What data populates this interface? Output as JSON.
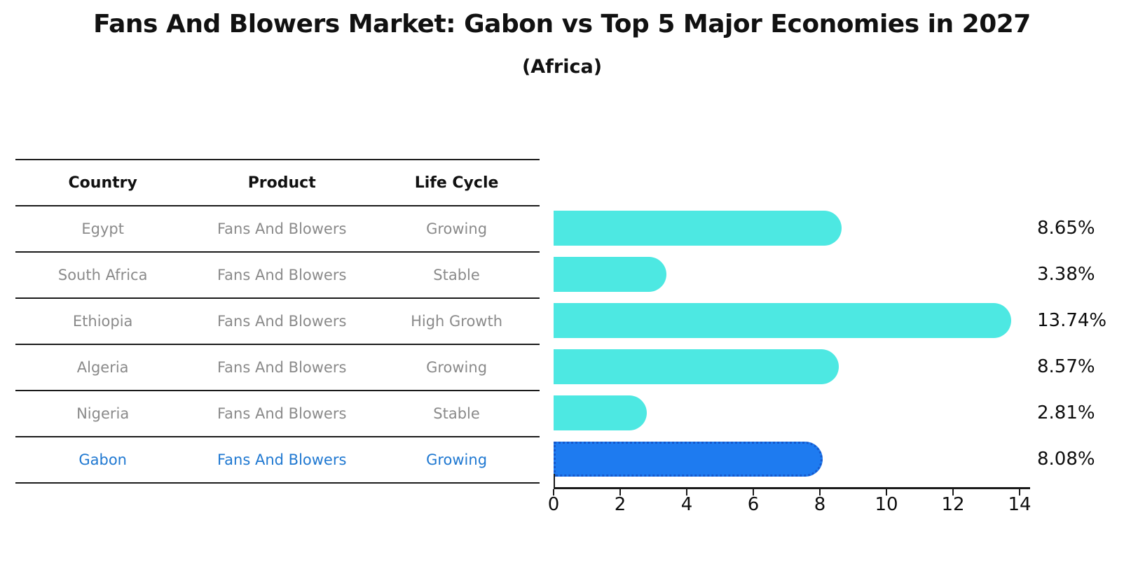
{
  "page": {
    "title": "Fans And Blowers Market: Gabon vs Top 5 Major Economies in 2027",
    "subtitle": "(Africa)"
  },
  "table": {
    "headers": [
      "Country",
      "Product",
      "Life Cycle"
    ],
    "rows": [
      {
        "country": "Egypt",
        "product": "Fans And Blowers",
        "life_cycle": "Growing",
        "highlight": false
      },
      {
        "country": "South Africa",
        "product": "Fans And Blowers",
        "life_cycle": "Stable",
        "highlight": false
      },
      {
        "country": "Ethiopia",
        "product": "Fans And Blowers",
        "life_cycle": "High Growth",
        "highlight": false
      },
      {
        "country": "Algeria",
        "product": "Fans And Blowers",
        "life_cycle": "Growing",
        "highlight": false
      },
      {
        "country": "Nigeria",
        "product": "Fans And Blowers",
        "life_cycle": "Stable",
        "highlight": false
      },
      {
        "country": "Gabon",
        "product": "Fans And Blowers",
        "life_cycle": "Growing",
        "highlight": true
      }
    ]
  },
  "chart_data": {
    "type": "bar",
    "orientation": "horizontal",
    "title": "Fans And Blowers Market: Gabon vs Top 5 Major Economies in 2027",
    "subtitle": "(Africa)",
    "categories": [
      "Egypt",
      "South Africa",
      "Ethiopia",
      "Algeria",
      "Nigeria",
      "Gabon"
    ],
    "values": [
      8.65,
      3.38,
      13.74,
      8.57,
      2.81,
      8.08
    ],
    "value_labels": [
      "8.65%",
      "3.38%",
      "13.74%",
      "8.57%",
      "2.81%",
      "8.08%"
    ],
    "highlight_index": 5,
    "x_ticks": [
      "0",
      "2",
      "4",
      "6",
      "8",
      "10",
      "12",
      "14"
    ],
    "x_tick_values": [
      0,
      2,
      4,
      6,
      8,
      10,
      12,
      14
    ],
    "xlim": [
      0,
      14.3
    ],
    "grid": false,
    "legend": false,
    "bar_color": "#4DE8E2",
    "highlight_bar_color": "#1E7BF0",
    "highlight_border_color": "#1558CC"
  },
  "colors": {
    "background": "#FFFFFF",
    "text_primary": "#111111",
    "text_muted": "#8A8A8A",
    "highlight_text": "#1F78D1",
    "line": "#1A1A1A"
  }
}
